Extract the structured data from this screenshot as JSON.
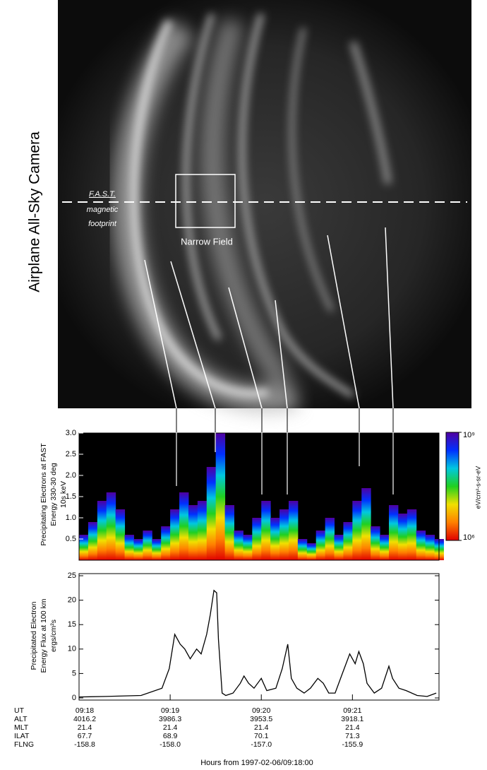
{
  "camera": {
    "title": "Airplane All-Sky Camera",
    "footprint_label": [
      "F.A.S.T.",
      "magnetic",
      "footprint"
    ],
    "box_label": "Narrow Field"
  },
  "chart_data": [
    {
      "type": "spectrogram",
      "ylabel": [
        "Precipitating Electrons at FAST",
        "Energy 330-30 deg",
        "10s keV"
      ],
      "x": [
        0.0,
        0.1,
        0.2,
        0.3,
        0.4,
        0.5,
        0.6,
        0.7,
        0.8,
        0.9,
        1.0,
        1.1,
        1.2,
        1.3,
        1.4,
        1.5,
        1.6,
        1.7,
        1.8,
        1.9,
        2.0,
        2.1,
        2.2,
        2.3,
        2.4,
        2.5,
        2.6,
        2.7,
        2.8,
        2.9,
        3.0,
        3.1,
        3.2,
        3.3,
        3.4,
        3.5,
        3.6,
        3.7,
        3.8,
        3.9
      ],
      "values": [
        0.6,
        0.9,
        1.4,
        1.6,
        1.2,
        0.6,
        0.5,
        0.7,
        0.5,
        0.8,
        1.2,
        1.6,
        1.3,
        1.4,
        2.2,
        3.0,
        1.3,
        0.7,
        0.6,
        1.0,
        1.4,
        1.0,
        1.2,
        1.4,
        0.5,
        0.4,
        0.7,
        1.0,
        0.6,
        0.9,
        1.4,
        1.7,
        0.8,
        0.6,
        1.3,
        1.1,
        1.2,
        0.7,
        0.6,
        0.5
      ],
      "xlim": [
        0,
        3.95
      ],
      "ylim": [
        0,
        3
      ],
      "yticks": [
        0.5,
        {
          "value": 1,
          "label": "1.0"
        },
        1.5,
        {
          "value": 2,
          "label": "2.0"
        },
        2.5,
        {
          "value": 3,
          "label": "3.0"
        }
      ],
      "colors": [
        "#e00000",
        "#ff8000",
        "#f0e000",
        "#20d020",
        "#00c8e0",
        "#0030ff",
        "#5000a0"
      ],
      "clim": [
        1000000,
        1000000000
      ],
      "cticks": [
        {
          "value": 1000000,
          "label": "10⁶"
        },
        {
          "value": 1000000000,
          "label": "10⁹"
        }
      ],
      "clabel": "eV/cm²-s-sr-eV"
    },
    {
      "type": "line",
      "ylabel": [
        "Precipitated Electron",
        "Energy Flux at 100 km",
        "ergs/cm²s"
      ],
      "x": [
        0,
        0.29,
        0.68,
        0.91,
        0.99,
        1.05,
        1.11,
        1.16,
        1.22,
        1.29,
        1.34,
        1.4,
        1.44,
        1.48,
        1.51,
        1.53,
        1.57,
        1.61,
        1.69,
        1.77,
        1.81,
        1.86,
        1.92,
        2.0,
        2.06,
        2.16,
        2.23,
        2.29,
        2.33,
        2.39,
        2.47,
        2.54,
        2.62,
        2.68,
        2.74,
        2.81,
        2.89,
        2.97,
        3.03,
        3.07,
        3.12,
        3.16,
        3.24,
        3.32,
        3.4,
        3.44,
        3.51,
        3.59,
        3.71,
        3.82,
        3.92
      ],
      "values": [
        0.2,
        0.3,
        0.5,
        2,
        6,
        13,
        11,
        10,
        8,
        10,
        9,
        13,
        17,
        22,
        21.5,
        12,
        1,
        0.5,
        1,
        3,
        4.5,
        3,
        2,
        4,
        1.5,
        2,
        6,
        11,
        4,
        2,
        1,
        2,
        4,
        3,
        1,
        1,
        5,
        9,
        7,
        9.5,
        7,
        3,
        1,
        2,
        6.5,
        4,
        2,
        1.5,
        0.5,
        0.3,
        1
      ],
      "color": "#000000",
      "xlim": [
        0,
        3.95
      ],
      "ylim": [
        0,
        25
      ],
      "xticks": [
        0,
        1,
        2,
        3
      ],
      "yticks": [
        0,
        5,
        10,
        15,
        20,
        25
      ]
    }
  ],
  "table": {
    "rows": [
      [
        "UT",
        "09:18",
        "09:19",
        "09:20",
        "09:21"
      ],
      [
        "ALT",
        "4016.2",
        "3986.3",
        "3953.5",
        "3918.1"
      ],
      [
        "MLT",
        "21.4",
        "21.4",
        "21.4",
        "21.4"
      ],
      [
        "ILAT",
        "67.7",
        "68.9",
        "70.1",
        "71.3"
      ],
      [
        "FLNG",
        "-158.8",
        "-158.0",
        "-157.0",
        "-155.9"
      ]
    ],
    "caption": "Hours from 1997-02-06/09:18:00"
  }
}
